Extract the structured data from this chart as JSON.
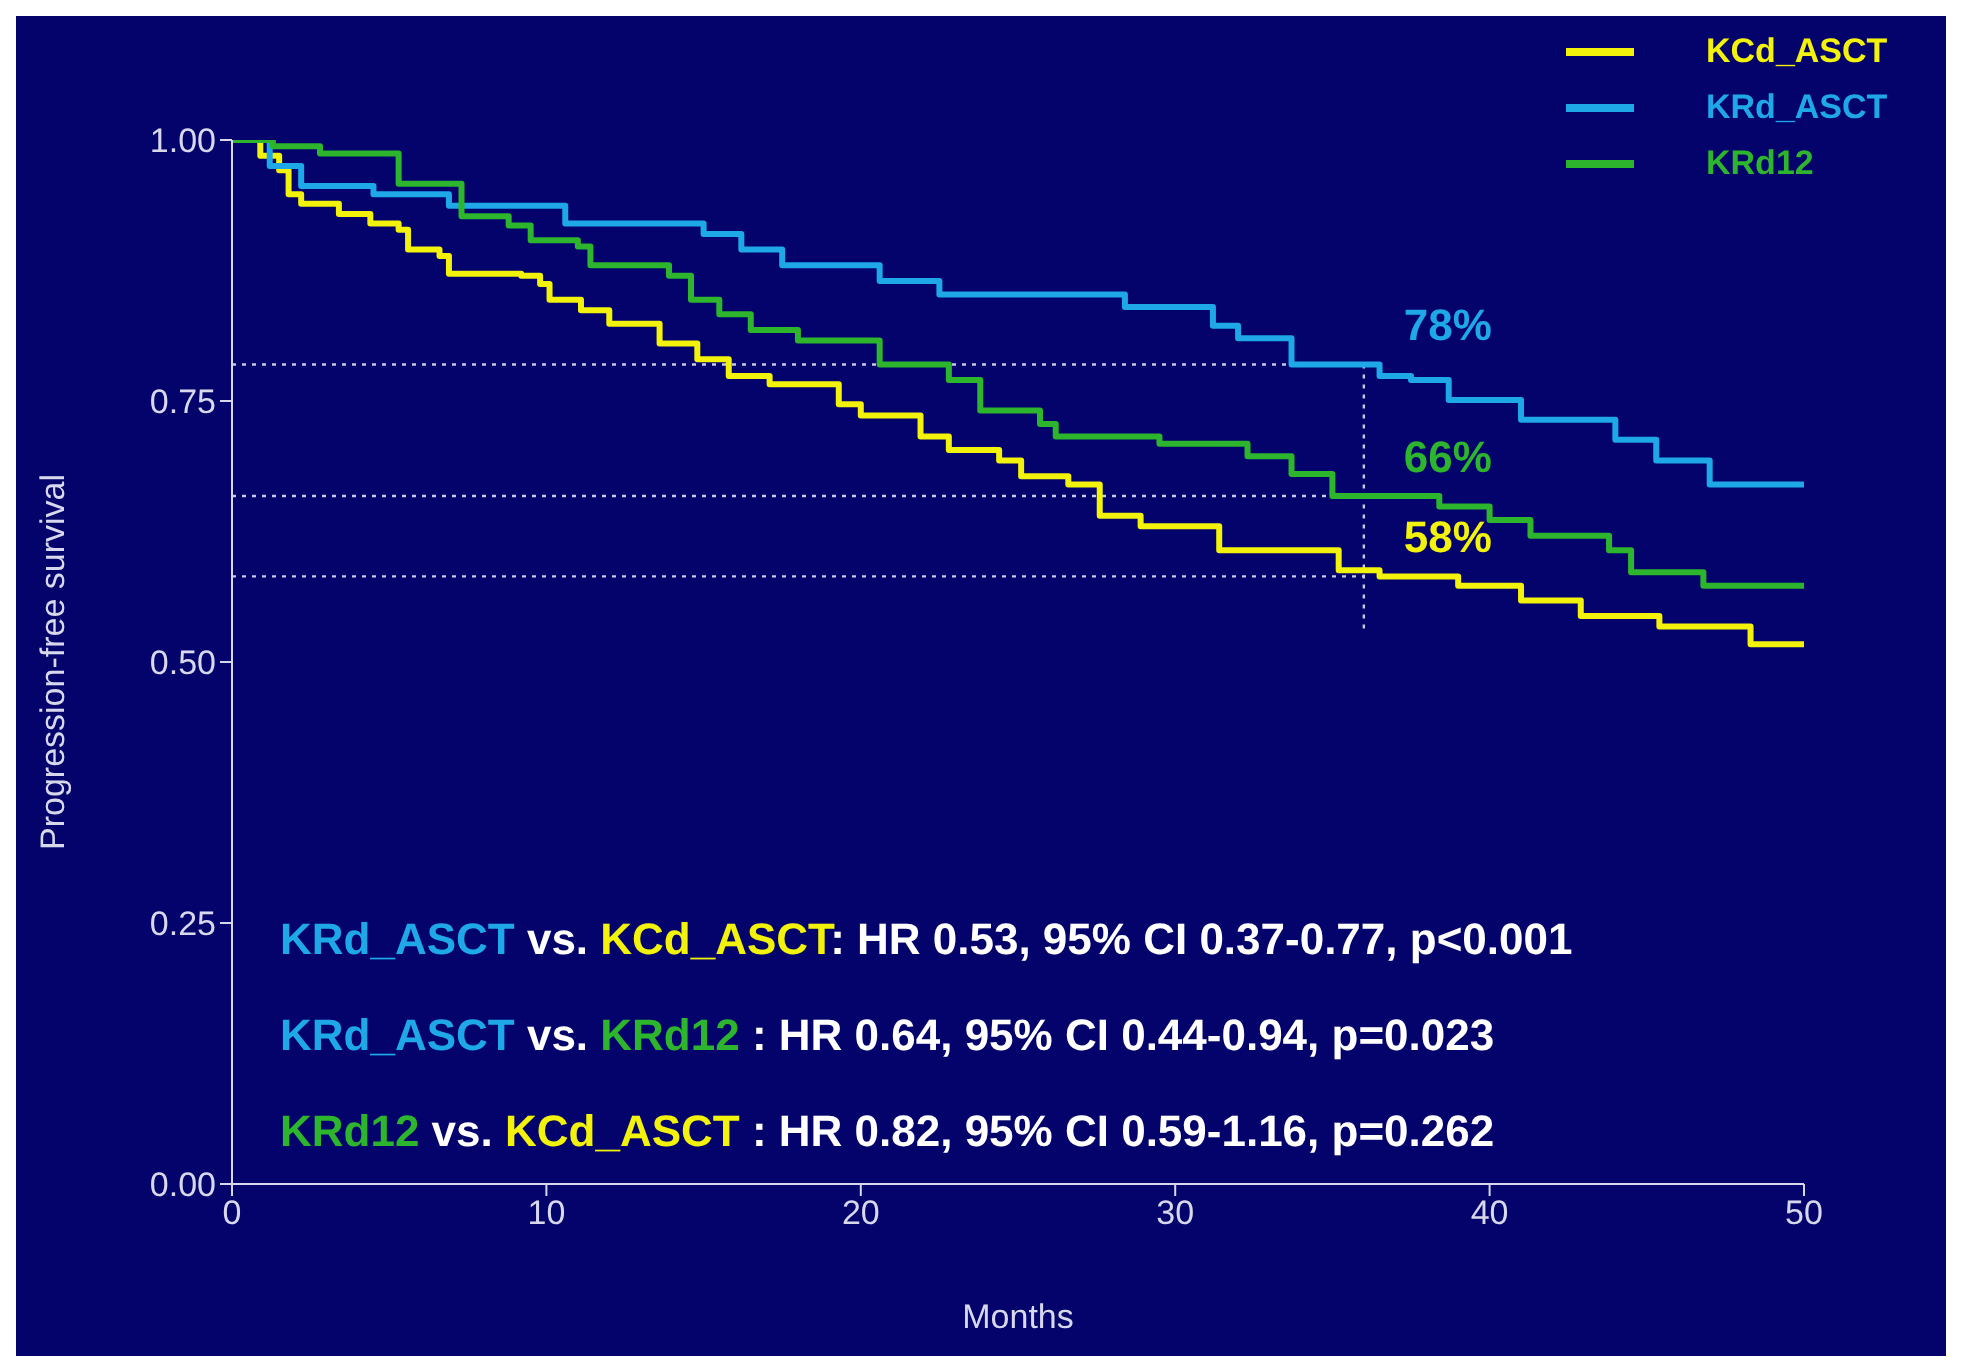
{
  "chart_data": {
    "type": "step",
    "xlabel": "Months",
    "ylabel": "Progression-free survival",
    "xlim": [
      0,
      50
    ],
    "xticks": [
      0,
      10,
      20,
      30,
      40,
      50
    ],
    "ylim": [
      0,
      1
    ],
    "yticks": [
      {
        "value": 0,
        "label": "0.00"
      },
      {
        "value": 0.25,
        "label": "0.25"
      },
      {
        "value": 0.5,
        "label": "0.50"
      },
      {
        "value": 0.75,
        "label": "0.75"
      },
      {
        "value": 1,
        "label": "1.00"
      }
    ],
    "grid": false,
    "legend": "top right",
    "marker": "none",
    "line_style": "solid",
    "series": [
      {
        "name": "KCd_ASCT",
        "color": "#f2f20a",
        "x": [
          0,
          0.9,
          1.5,
          1.8,
          2.2,
          3.4,
          4.4,
          5.3,
          5.6,
          6.6,
          6.9,
          9.2,
          9.8,
          10.1,
          11.1,
          12,
          13.6,
          14.8,
          15.8,
          17.1,
          19.3,
          20,
          21.9,
          22.8,
          24.4,
          25.1,
          26.6,
          27.6,
          28.9,
          31.4,
          35.2,
          36.5,
          39,
          41,
          42.9,
          45.4,
          48.3,
          50
        ],
        "values": [
          1,
          0.985,
          0.971,
          0.948,
          0.939,
          0.929,
          0.92,
          0.914,
          0.895,
          0.889,
          0.872,
          0.87,
          0.862,
          0.847,
          0.837,
          0.824,
          0.805,
          0.79,
          0.774,
          0.766,
          0.747,
          0.736,
          0.716,
          0.703,
          0.693,
          0.678,
          0.67,
          0.64,
          0.63,
          0.607,
          0.588,
          0.582,
          0.573,
          0.559,
          0.544,
          0.534,
          0.517,
          0.517
        ]
      },
      {
        "name": "KRd_ASCT",
        "color": "#1ea8e8",
        "x": [
          0,
          1.2,
          2.2,
          4.5,
          6.9,
          10.6,
          15,
          16.2,
          17.5,
          20.6,
          22.5,
          28.4,
          31.2,
          32,
          33.7,
          36.5,
          37.5,
          38.7,
          41,
          44,
          45.3,
          47,
          50
        ],
        "values": [
          1,
          0.975,
          0.956,
          0.948,
          0.937,
          0.92,
          0.91,
          0.895,
          0.88,
          0.865,
          0.852,
          0.84,
          0.822,
          0.81,
          0.785,
          0.774,
          0.77,
          0.751,
          0.732,
          0.713,
          0.693,
          0.67,
          0.67
        ]
      },
      {
        "name": "KRd12",
        "color": "#2db52d",
        "x": [
          0,
          1.3,
          2.8,
          5.3,
          7.3,
          8.8,
          9.5,
          11,
          11.4,
          13.9,
          14.6,
          15.5,
          16.5,
          18,
          20.6,
          22.8,
          23.8,
          25.7,
          26.2,
          29.5,
          32.3,
          33.7,
          35,
          38.4,
          40,
          41.3,
          43.8,
          44.5,
          46.8,
          50
        ],
        "values": [
          1,
          0.994,
          0.987,
          0.958,
          0.927,
          0.918,
          0.904,
          0.898,
          0.88,
          0.87,
          0.847,
          0.833,
          0.818,
          0.808,
          0.785,
          0.77,
          0.741,
          0.728,
          0.716,
          0.709,
          0.697,
          0.68,
          0.659,
          0.649,
          0.636,
          0.621,
          0.607,
          0.586,
          0.573,
          0.573
        ]
      }
    ],
    "ref_lines": [
      {
        "axis": "x",
        "value": 36,
        "color": "#c8c8e6",
        "line_style": "dotted"
      },
      {
        "axis": "y",
        "value": 0.785,
        "label": "78%",
        "color": "#c8c8e6",
        "line_style": "dotted"
      },
      {
        "axis": "y",
        "value": 0.659,
        "label": "66%",
        "color": "#c8c8e6",
        "line_style": "dotted"
      },
      {
        "axis": "y",
        "value": 0.582,
        "label": "58%",
        "color": "#c8c8e6",
        "line_style": "dotted"
      }
    ],
    "annotations": [
      "KRd_ASCT vs. KCd_ASCT: HR 0.53, 95% CI 0.37-0.77, p<0.001",
      "KRd_ASCT vs. KRd12 : HR 0.64, 95% CI 0.44-0.94, p=0.023",
      "KRd12 vs. KCd_ASCT : HR 0.82, 95% CI 0.59-1.16, p=0.262"
    ]
  }
}
